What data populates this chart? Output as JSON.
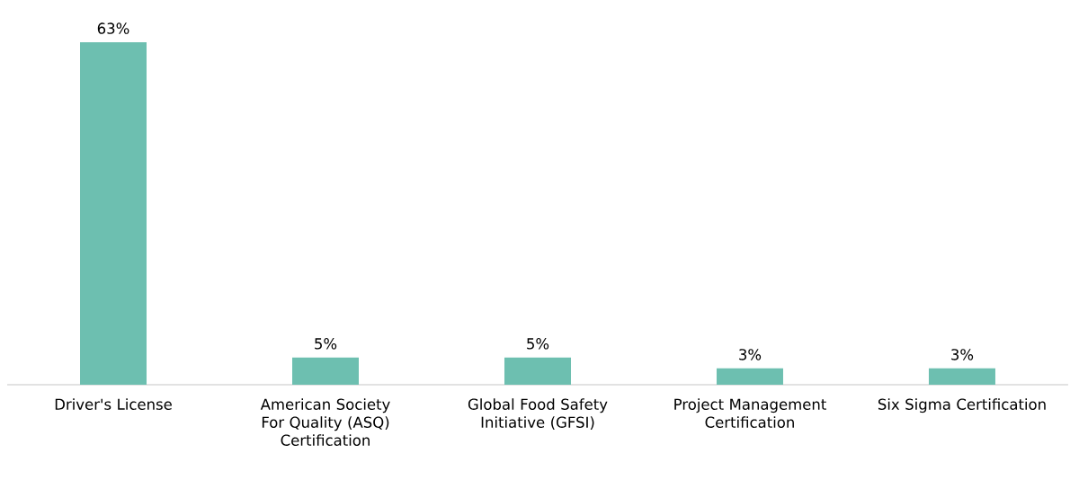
{
  "chart_data": {
    "type": "bar",
    "categories": [
      "Driver's License",
      "American Society For Quality (ASQ) Certification",
      "Global Food Safety Initiative (GFSI)",
      "Project Management Certification",
      "Six Sigma Certification"
    ],
    "values": [
      63,
      5,
      5,
      3,
      3
    ],
    "value_labels": [
      "63%",
      "5%",
      "5%",
      "3%",
      "3%"
    ],
    "color": "#6dbfb0"
  }
}
